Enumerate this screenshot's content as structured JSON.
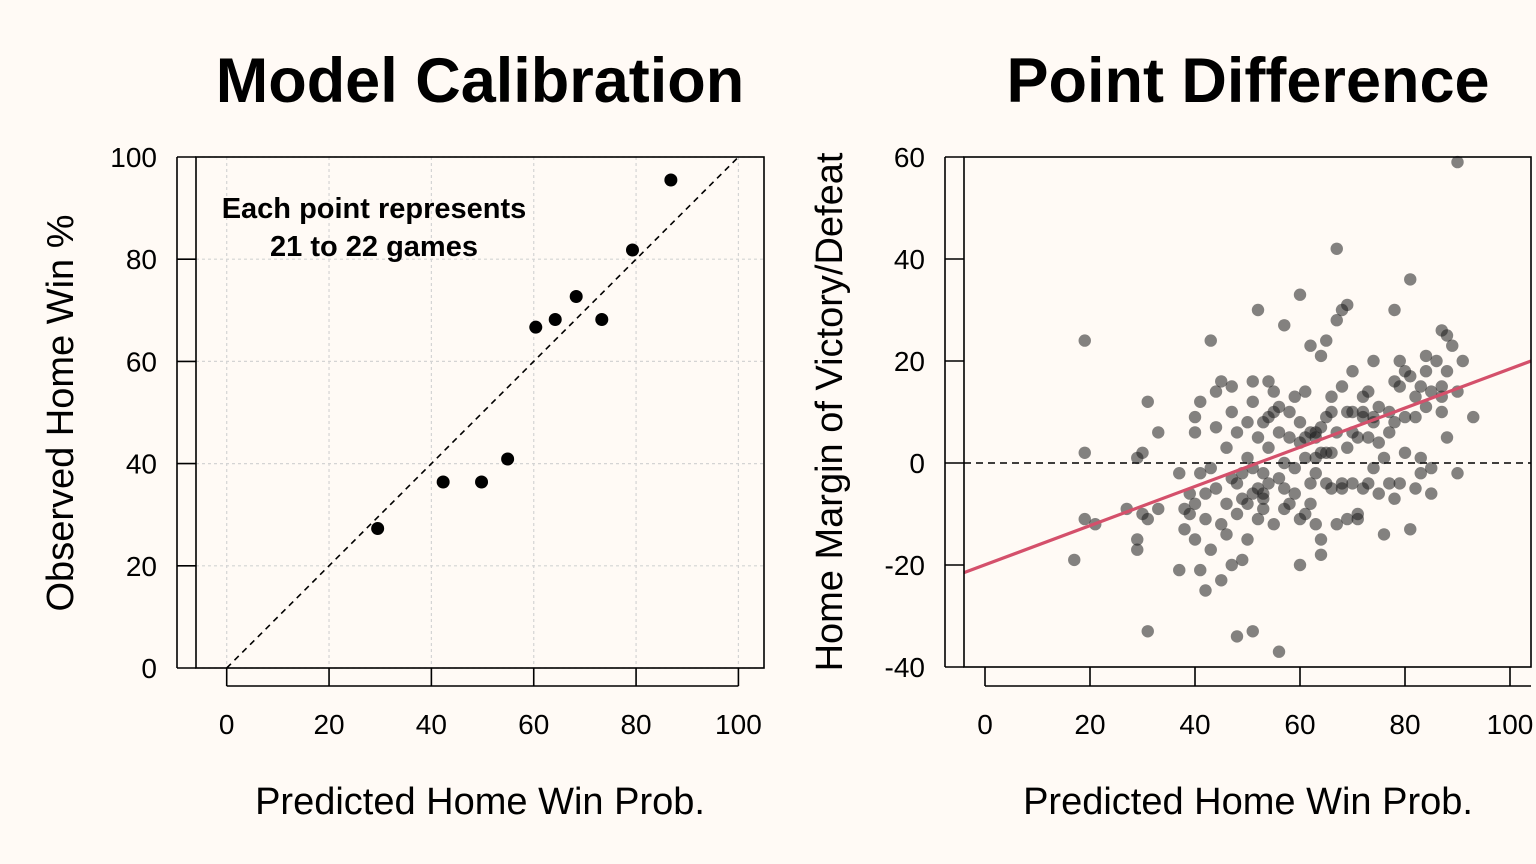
{
  "chart_data": [
    {
      "type": "scatter",
      "title": "Model Calibration",
      "xlabel": "Predicted Home Win Prob.",
      "ylabel": "Observed Home Win %",
      "xlim": [
        -6,
        105
      ],
      "ylim": [
        0,
        100
      ],
      "xticks": [
        "0",
        "20",
        "40",
        "60",
        "80",
        "100"
      ],
      "yticks": [
        "0",
        "20",
        "40",
        "60",
        "80",
        "100"
      ],
      "grid": true,
      "reference_line": {
        "type": "y = x",
        "style": "dashed"
      },
      "annotation": [
        "Each point represents",
        "21 to 22 games"
      ],
      "x": [
        29.5,
        42.3,
        49.8,
        54.9,
        60.4,
        64.2,
        68.3,
        73.3,
        79.3,
        86.8
      ],
      "y": [
        27.3,
        36.4,
        36.4,
        40.9,
        66.7,
        68.2,
        72.7,
        68.2,
        81.8,
        95.5
      ]
    },
    {
      "type": "scatter",
      "title": "Point Difference",
      "xlabel": "Predicted Home Win Prob.",
      "ylabel": "Home Margin of Victory/Defeat",
      "xlim": [
        -4,
        104
      ],
      "ylim": [
        -40,
        60
      ],
      "xticks": [
        "0",
        "20",
        "40",
        "60",
        "80",
        "100"
      ],
      "yticks": [
        "-40",
        "-20",
        "0",
        "20",
        "40",
        "60"
      ],
      "grid": false,
      "reference_line": {
        "type": "y = 0",
        "style": "dashed"
      },
      "fit_line": {
        "color": "#d4506b",
        "x": [
          -4,
          104
        ],
        "y": [
          -21.5,
          20
        ]
      },
      "point_color": "rgba(30,30,30,0.55)",
      "points": [
        [
          17,
          -19
        ],
        [
          19,
          24
        ],
        [
          19,
          2
        ],
        [
          19,
          -11
        ],
        [
          21,
          -12
        ],
        [
          27,
          -9
        ],
        [
          29,
          -17
        ],
        [
          29,
          -15
        ],
        [
          29,
          1
        ],
        [
          30,
          2
        ],
        [
          30,
          -10
        ],
        [
          31,
          -11
        ],
        [
          31,
          12
        ],
        [
          31,
          -33
        ],
        [
          33,
          6
        ],
        [
          33,
          -9
        ],
        [
          37,
          -21
        ],
        [
          37,
          -2
        ],
        [
          38,
          -9
        ],
        [
          38,
          -13
        ],
        [
          39,
          -10
        ],
        [
          39,
          -6
        ],
        [
          40,
          -8
        ],
        [
          40,
          -15
        ],
        [
          40,
          6
        ],
        [
          40,
          9
        ],
        [
          41,
          12
        ],
        [
          41,
          -2
        ],
        [
          41,
          -21
        ],
        [
          42,
          -25
        ],
        [
          42,
          -11
        ],
        [
          42,
          -6
        ],
        [
          43,
          -17
        ],
        [
          43,
          -1
        ],
        [
          43,
          24
        ],
        [
          44,
          -5
        ],
        [
          44,
          7
        ],
        [
          44,
          14
        ],
        [
          45,
          -12
        ],
        [
          45,
          -23
        ],
        [
          45,
          16
        ],
        [
          46,
          -8
        ],
        [
          46,
          3
        ],
        [
          46,
          -14
        ],
        [
          47,
          10
        ],
        [
          47,
          -3
        ],
        [
          47,
          15
        ],
        [
          47,
          -20
        ],
        [
          48,
          -34
        ],
        [
          48,
          -10
        ],
        [
          48,
          -4
        ],
        [
          48,
          6
        ],
        [
          49,
          -2
        ],
        [
          49,
          -7
        ],
        [
          49,
          -19
        ],
        [
          50,
          -15
        ],
        [
          50,
          8
        ],
        [
          50,
          1
        ],
        [
          50,
          -8
        ],
        [
          51,
          -33
        ],
        [
          51,
          16
        ],
        [
          51,
          -1
        ],
        [
          51,
          -6
        ],
        [
          51,
          12
        ],
        [
          52,
          30
        ],
        [
          52,
          5
        ],
        [
          52,
          -5
        ],
        [
          52,
          -11
        ],
        [
          53,
          -9
        ],
        [
          53,
          -7
        ],
        [
          53,
          -6
        ],
        [
          53,
          -2
        ],
        [
          53,
          8
        ],
        [
          54,
          -4
        ],
        [
          54,
          3
        ],
        [
          54,
          9
        ],
        [
          54,
          16
        ],
        [
          55,
          14
        ],
        [
          55,
          -12
        ],
        [
          55,
          10
        ],
        [
          56,
          -37
        ],
        [
          56,
          -3
        ],
        [
          56,
          11
        ],
        [
          56,
          6
        ],
        [
          57,
          -9
        ],
        [
          57,
          0
        ],
        [
          57,
          -5
        ],
        [
          57,
          27
        ],
        [
          58,
          5
        ],
        [
          58,
          -8
        ],
        [
          58,
          10
        ],
        [
          59,
          -1
        ],
        [
          59,
          -6
        ],
        [
          59,
          13
        ],
        [
          60,
          33
        ],
        [
          60,
          -20
        ],
        [
          60,
          -11
        ],
        [
          60,
          4
        ],
        [
          60,
          8
        ],
        [
          61,
          -10
        ],
        [
          61,
          1
        ],
        [
          61,
          5
        ],
        [
          61,
          14
        ],
        [
          62,
          6
        ],
        [
          62,
          -4
        ],
        [
          62,
          23
        ],
        [
          62,
          -8
        ],
        [
          63,
          5
        ],
        [
          63,
          -12
        ],
        [
          63,
          1
        ],
        [
          63,
          -2
        ],
        [
          63,
          6
        ],
        [
          64,
          21
        ],
        [
          64,
          -18
        ],
        [
          64,
          -15
        ],
        [
          64,
          7
        ],
        [
          64,
          2
        ],
        [
          65,
          -4
        ],
        [
          65,
          2
        ],
        [
          65,
          9
        ],
        [
          65,
          24
        ],
        [
          66,
          -5
        ],
        [
          66,
          2
        ],
        [
          66,
          13
        ],
        [
          66,
          10
        ],
        [
          67,
          -12
        ],
        [
          67,
          6
        ],
        [
          67,
          28
        ],
        [
          67,
          42
        ],
        [
          68,
          -4
        ],
        [
          68,
          30
        ],
        [
          68,
          15
        ],
        [
          68,
          -5
        ],
        [
          69,
          31
        ],
        [
          69,
          -11
        ],
        [
          69,
          3
        ],
        [
          69,
          10
        ],
        [
          70,
          18
        ],
        [
          70,
          -4
        ],
        [
          70,
          6
        ],
        [
          70,
          10
        ],
        [
          71,
          -11
        ],
        [
          71,
          -10
        ],
        [
          71,
          5
        ],
        [
          72,
          9
        ],
        [
          72,
          -5
        ],
        [
          72,
          10
        ],
        [
          72,
          13
        ],
        [
          73,
          -4
        ],
        [
          73,
          14
        ],
        [
          73,
          5
        ],
        [
          74,
          20
        ],
        [
          74,
          9
        ],
        [
          74,
          -1
        ],
        [
          74,
          8
        ],
        [
          75,
          -6
        ],
        [
          75,
          4
        ],
        [
          75,
          11
        ],
        [
          76,
          1
        ],
        [
          76,
          -14
        ],
        [
          77,
          6
        ],
        [
          77,
          -4
        ],
        [
          77,
          10
        ],
        [
          78,
          30
        ],
        [
          78,
          16
        ],
        [
          78,
          8
        ],
        [
          78,
          -7
        ],
        [
          79,
          15
        ],
        [
          79,
          20
        ],
        [
          79,
          -4
        ],
        [
          80,
          9
        ],
        [
          80,
          18
        ],
        [
          80,
          2
        ],
        [
          81,
          -13
        ],
        [
          81,
          36
        ],
        [
          81,
          17
        ],
        [
          82,
          -5
        ],
        [
          82,
          13
        ],
        [
          82,
          9
        ],
        [
          83,
          -2
        ],
        [
          83,
          15
        ],
        [
          83,
          1
        ],
        [
          84,
          18
        ],
        [
          84,
          11
        ],
        [
          84,
          21
        ],
        [
          85,
          -6
        ],
        [
          85,
          14
        ],
        [
          85,
          -1
        ],
        [
          86,
          20
        ],
        [
          87,
          26
        ],
        [
          87,
          15
        ],
        [
          87,
          10
        ],
        [
          87,
          13
        ],
        [
          88,
          25
        ],
        [
          88,
          18
        ],
        [
          88,
          5
        ],
        [
          89,
          23
        ],
        [
          90,
          -2
        ],
        [
          90,
          14
        ],
        [
          90,
          59
        ],
        [
          91,
          20
        ],
        [
          93,
          9
        ]
      ]
    }
  ]
}
